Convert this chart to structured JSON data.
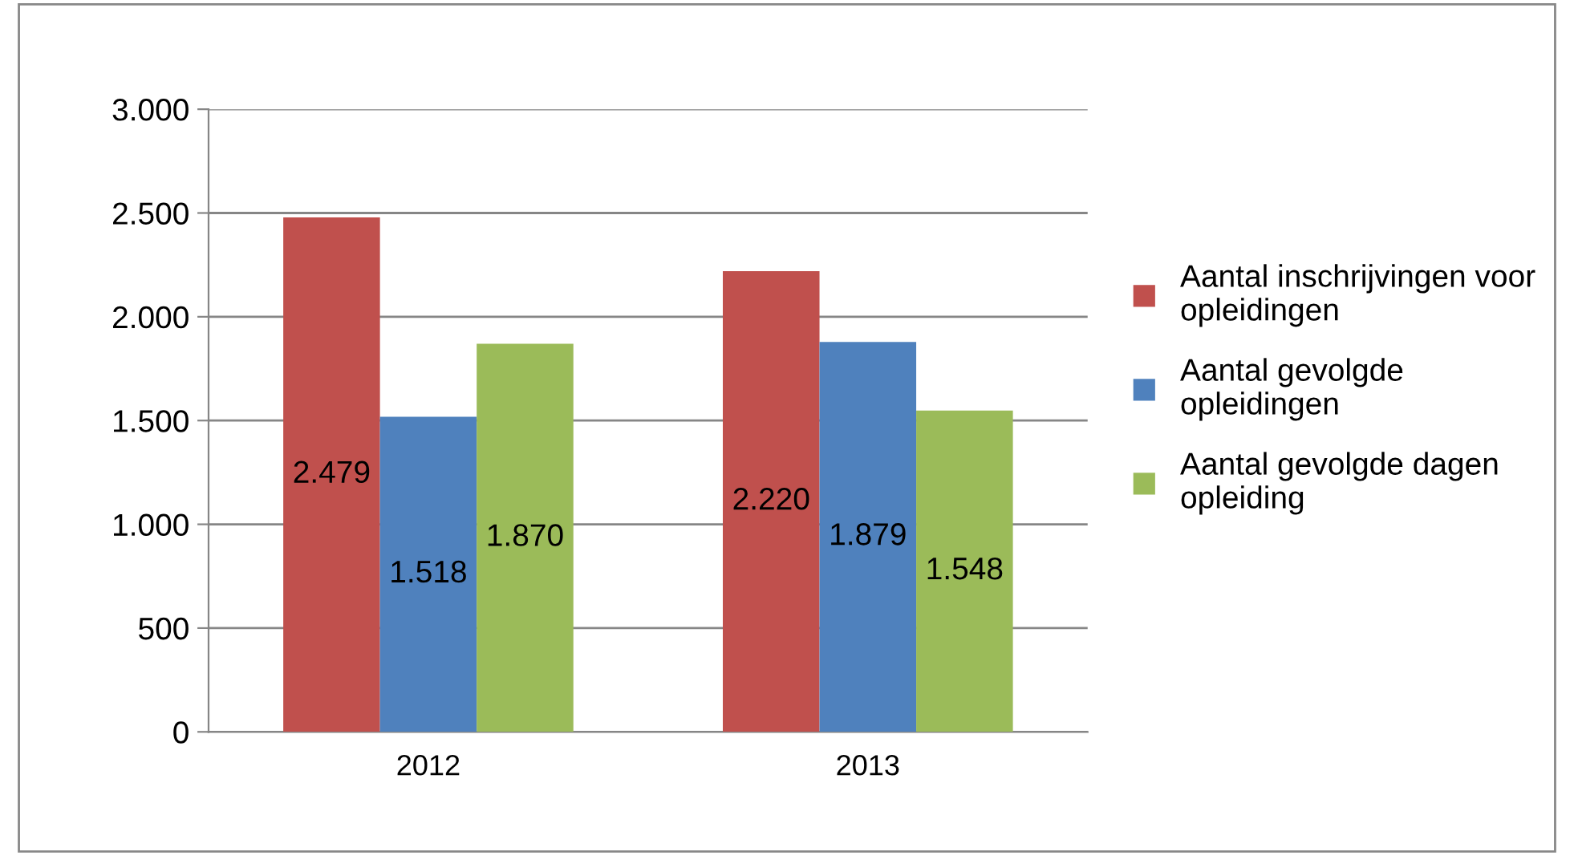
{
  "chart_data": {
    "type": "bar",
    "categories": [
      "2012",
      "2013"
    ],
    "series": [
      {
        "name": "Aantal inschrijvingen voor opleidingen",
        "color": "#c0504d",
        "values": [
          2479,
          2220
        ],
        "value_labels": [
          "2.479",
          "2.220"
        ]
      },
      {
        "name": "Aantal gevolgde opleidingen",
        "color": "#4f81bd",
        "values": [
          1518,
          1879
        ],
        "value_labels": [
          "1.518",
          "1.879"
        ]
      },
      {
        "name": "Aantal gevolgde dagen opleiding",
        "color": "#9bbb59",
        "values": [
          1870,
          1548
        ],
        "value_labels": [
          "1.870",
          "1.548"
        ]
      }
    ],
    "ylim": [
      0,
      3000
    ],
    "yticks": [
      {
        "value": 0,
        "label": "0"
      },
      {
        "value": 500,
        "label": "500"
      },
      {
        "value": 1000,
        "label": "1.000"
      },
      {
        "value": 1500,
        "label": "1.500"
      },
      {
        "value": 2000,
        "label": "2.000"
      },
      {
        "value": 2500,
        "label": "2.500"
      },
      {
        "value": 3000,
        "label": "3.000"
      }
    ],
    "grid": "y",
    "legend": "right"
  }
}
